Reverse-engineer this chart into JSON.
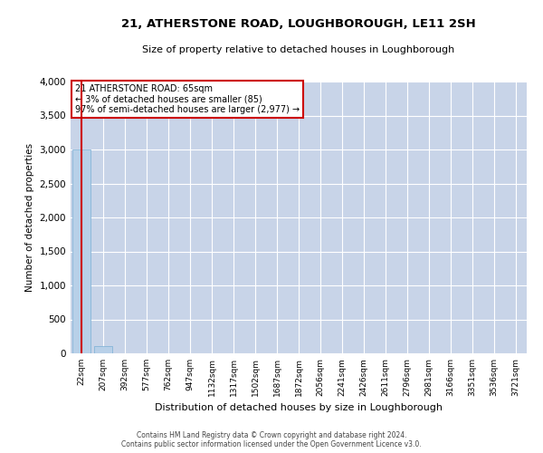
{
  "title": "21, ATHERSTONE ROAD, LOUGHBOROUGH, LE11 2SH",
  "subtitle": "Size of property relative to detached houses in Loughborough",
  "xlabel": "Distribution of detached houses by size in Loughborough",
  "ylabel": "Number of detached properties",
  "footer_line1": "Contains HM Land Registry data © Crown copyright and database right 2024.",
  "footer_line2": "Contains public sector information licensed under the Open Government Licence v3.0.",
  "annotation_title": "21 ATHERSTONE ROAD: 65sqm",
  "annotation_line2": "← 3% of detached houses are smaller (85)",
  "annotation_line3": "97% of semi-detached houses are larger (2,977) →",
  "bar_color": "#b8d0e8",
  "bar_edge_color": "#7aafd4",
  "highlight_color": "#cc0000",
  "background_color": "#ffffff",
  "grid_color": "#c8d4e8",
  "categories": [
    "22sqm",
    "207sqm",
    "392sqm",
    "577sqm",
    "762sqm",
    "947sqm",
    "1132sqm",
    "1317sqm",
    "1502sqm",
    "1687sqm",
    "1872sqm",
    "2056sqm",
    "2241sqm",
    "2426sqm",
    "2611sqm",
    "2796sqm",
    "2981sqm",
    "3166sqm",
    "3351sqm",
    "3536sqm",
    "3721sqm"
  ],
  "values": [
    3000,
    110,
    3,
    1,
    1,
    0,
    0,
    0,
    0,
    0,
    0,
    0,
    0,
    0,
    0,
    0,
    0,
    0,
    0,
    0,
    0
  ],
  "ylim": [
    0,
    4000
  ],
  "yticks": [
    0,
    500,
    1000,
    1500,
    2000,
    2500,
    3000,
    3500,
    4000
  ]
}
